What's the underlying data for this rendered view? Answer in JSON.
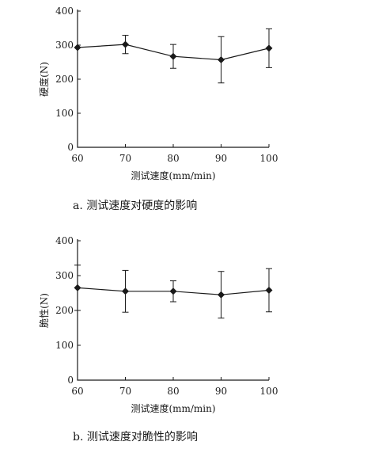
{
  "chart_data": [
    {
      "type": "line",
      "xlabel": "测试速度(mm/min)",
      "ylabel": "硬度(N)",
      "caption": "a. 测试速度对硬度的影响",
      "x": [
        60,
        70,
        80,
        90,
        100
      ],
      "x_ticks": [
        "60",
        "70",
        "80",
        "90",
        "100"
      ],
      "y_ticks": [
        "0",
        "100",
        "200",
        "300",
        "400"
      ],
      "xlim": [
        60,
        100
      ],
      "ylim": [
        0,
        400
      ],
      "series": [
        {
          "values": [
            293,
            302,
            267,
            257,
            291
          ],
          "error": [
            0,
            27,
            35,
            68,
            57
          ]
        }
      ]
    },
    {
      "type": "line",
      "xlabel": "测试速度(mm/min)",
      "ylabel": "脆性(N)",
      "caption": "b. 测试速度对脆性的影响",
      "x": [
        60,
        70,
        80,
        90,
        100
      ],
      "x_ticks": [
        "60",
        "70",
        "80",
        "90",
        "100"
      ],
      "y_ticks": [
        "0",
        "100",
        "200",
        "300",
        "400"
      ],
      "xlim": [
        60,
        100
      ],
      "ylim": [
        0,
        400
      ],
      "series": [
        {
          "values": [
            265,
            255,
            255,
            245,
            258
          ],
          "error": [
            65,
            60,
            30,
            67,
            62
          ]
        }
      ]
    }
  ]
}
